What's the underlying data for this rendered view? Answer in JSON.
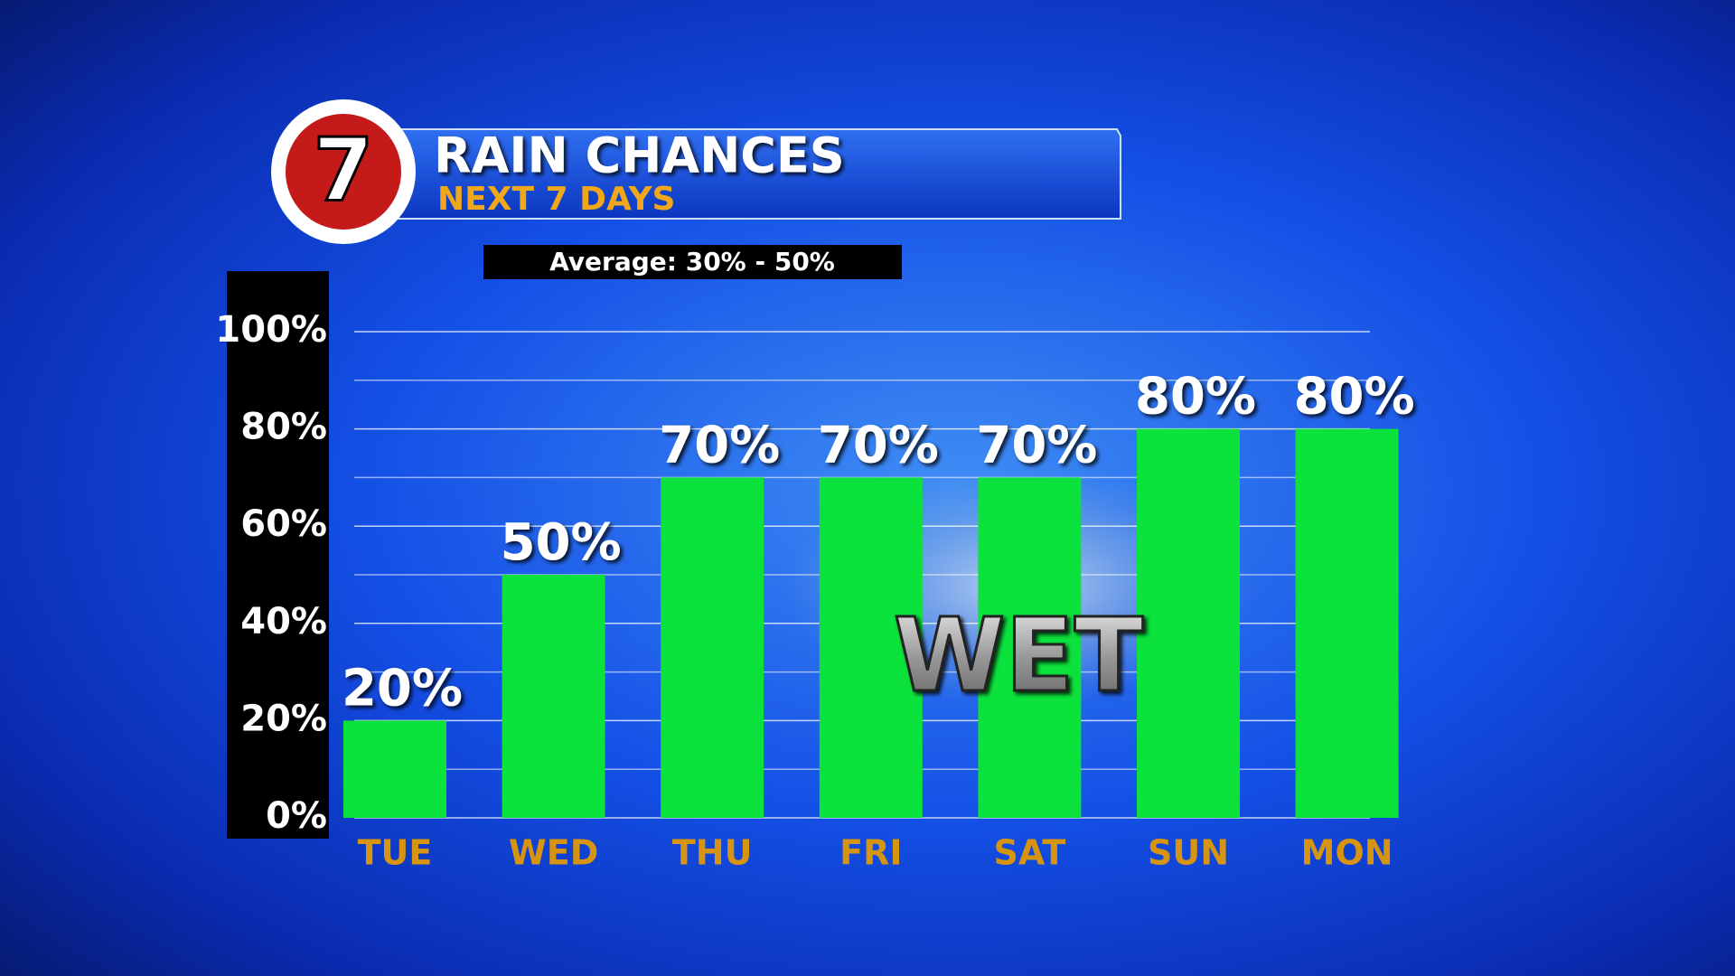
{
  "chart_data": {
    "type": "bar",
    "title": "RAIN CHANCES",
    "subtitle": "NEXT 7 DAYS",
    "logo": "7",
    "note": "Average: 30% - 50%",
    "annotation": "WET",
    "categories": [
      "TUE",
      "WED",
      "THU",
      "FRI",
      "SAT",
      "SUN",
      "MON"
    ],
    "values": [
      20,
      50,
      70,
      70,
      70,
      80,
      80
    ],
    "value_labels": [
      "20%",
      "50%",
      "70%",
      "70%",
      "70%",
      "80%",
      "80%"
    ],
    "color": "#0be23c",
    "ylim": [
      0,
      100
    ],
    "yticks": [
      {
        "value": 0,
        "label": "0%"
      },
      {
        "value": 20,
        "label": "20%"
      },
      {
        "value": 40,
        "label": "40%"
      },
      {
        "value": 60,
        "label": "60%"
      },
      {
        "value": 80,
        "label": "80%"
      },
      {
        "value": 100,
        "label": "100%"
      }
    ],
    "minor_yticks": [
      10,
      30,
      50,
      70,
      90
    ],
    "grid": true
  }
}
